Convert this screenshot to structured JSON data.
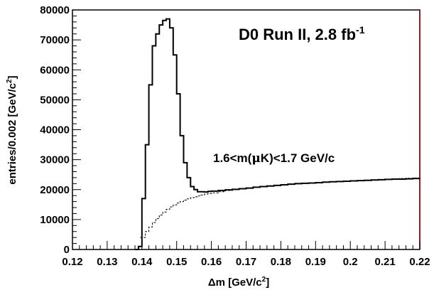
{
  "chart_data": {
    "type": "line",
    "title": "",
    "xlabel": {
      "main": "Δm [GeV/c",
      "sup": "2",
      "tail": "]"
    },
    "ylabel": {
      "main": "entries/0.002 [GeV/c",
      "sup": "2",
      "tail": "]"
    },
    "xlim": [
      0.12,
      0.22
    ],
    "ylim": [
      0,
      80000
    ],
    "xticks": [
      0.12,
      0.13,
      0.14,
      0.15,
      0.16,
      0.17,
      0.18,
      0.19,
      0.2,
      0.21,
      0.22
    ],
    "xtick_labels": [
      "0.12",
      "0.13",
      "0.14",
      "0.15",
      "0.16",
      "0.17",
      "0.18",
      "0.19",
      "0.2",
      "0.21",
      "0.22"
    ],
    "yticks": [
      0,
      10000,
      20000,
      30000,
      40000,
      50000,
      60000,
      70000,
      80000
    ],
    "ytick_labels": [
      "0",
      "10000",
      "20000",
      "30000",
      "40000",
      "50000",
      "60000",
      "70000",
      "80000"
    ],
    "annotations": {
      "run": {
        "main": "D0 Run II, 2.8 fb",
        "sup": "-1"
      },
      "mass_window": {
        "pre": "1.6<m(",
        "greek": "μ",
        "post": "K)<1.7 GeV/c"
      }
    },
    "bin_width": 0.002,
    "series": [
      {
        "style": "solid-histogram",
        "x": [
          0.138,
          0.139,
          0.14,
          0.141,
          0.142,
          0.143,
          0.144,
          0.145,
          0.146,
          0.147,
          0.148,
          0.149,
          0.15,
          0.151,
          0.152,
          0.153,
          0.154,
          0.155,
          0.156,
          0.157,
          0.158,
          0.159,
          0.16,
          0.162,
          0.164,
          0.166,
          0.168,
          0.17,
          0.172,
          0.174,
          0.176,
          0.178,
          0.18,
          0.182,
          0.184,
          0.186,
          0.188,
          0.19,
          0.192,
          0.194,
          0.196,
          0.198,
          0.2,
          0.202,
          0.204,
          0.206,
          0.208,
          0.21,
          0.212,
          0.214,
          0.216,
          0.218,
          0.22
        ],
        "values": [
          0,
          1000,
          17000,
          35000,
          55000,
          68000,
          72000,
          75000,
          76500,
          77000,
          74000,
          65000,
          52000,
          38000,
          29000,
          24000,
          21000,
          20000,
          19300,
          19300,
          19200,
          19400,
          19500,
          19700,
          19900,
          20100,
          20300,
          20500,
          20800,
          21000,
          21200,
          21400,
          21600,
          21800,
          22000,
          22100,
          22200,
          22300,
          22500,
          22600,
          22700,
          22800,
          22900,
          23000,
          23100,
          23200,
          23300,
          23400,
          23500,
          23500,
          23600,
          23700,
          23800
        ]
      },
      {
        "style": "dashed-histogram",
        "x": [
          0.1395,
          0.141,
          0.142,
          0.143,
          0.144,
          0.145,
          0.146,
          0.147,
          0.148,
          0.149,
          0.15,
          0.151,
          0.152,
          0.153,
          0.154,
          0.155,
          0.156,
          0.157,
          0.158,
          0.159,
          0.16,
          0.162,
          0.164,
          0.166,
          0.168,
          0.17,
          0.172,
          0.174,
          0.176,
          0.178,
          0.18,
          0.182,
          0.184,
          0.186,
          0.188,
          0.19,
          0.192,
          0.194,
          0.196,
          0.198,
          0.2,
          0.202,
          0.204,
          0.206,
          0.208,
          0.21,
          0.212,
          0.214,
          0.216,
          0.218,
          0.22
        ],
        "values": [
          4000,
          6000,
          7500,
          9000,
          10300,
          11500,
          12500,
          13400,
          14200,
          14900,
          15500,
          16000,
          16500,
          16900,
          17300,
          17600,
          17900,
          18200,
          18500,
          18700,
          18900,
          19300,
          19700,
          20000,
          20300,
          20600,
          20900,
          21100,
          21300,
          21500,
          21700,
          21900,
          22100,
          22200,
          22300,
          22400,
          22500,
          22600,
          22800,
          22900,
          23000,
          23100,
          23200,
          23300,
          23400,
          23500,
          23600,
          23700,
          23800,
          23900,
          24000
        ]
      }
    ]
  }
}
